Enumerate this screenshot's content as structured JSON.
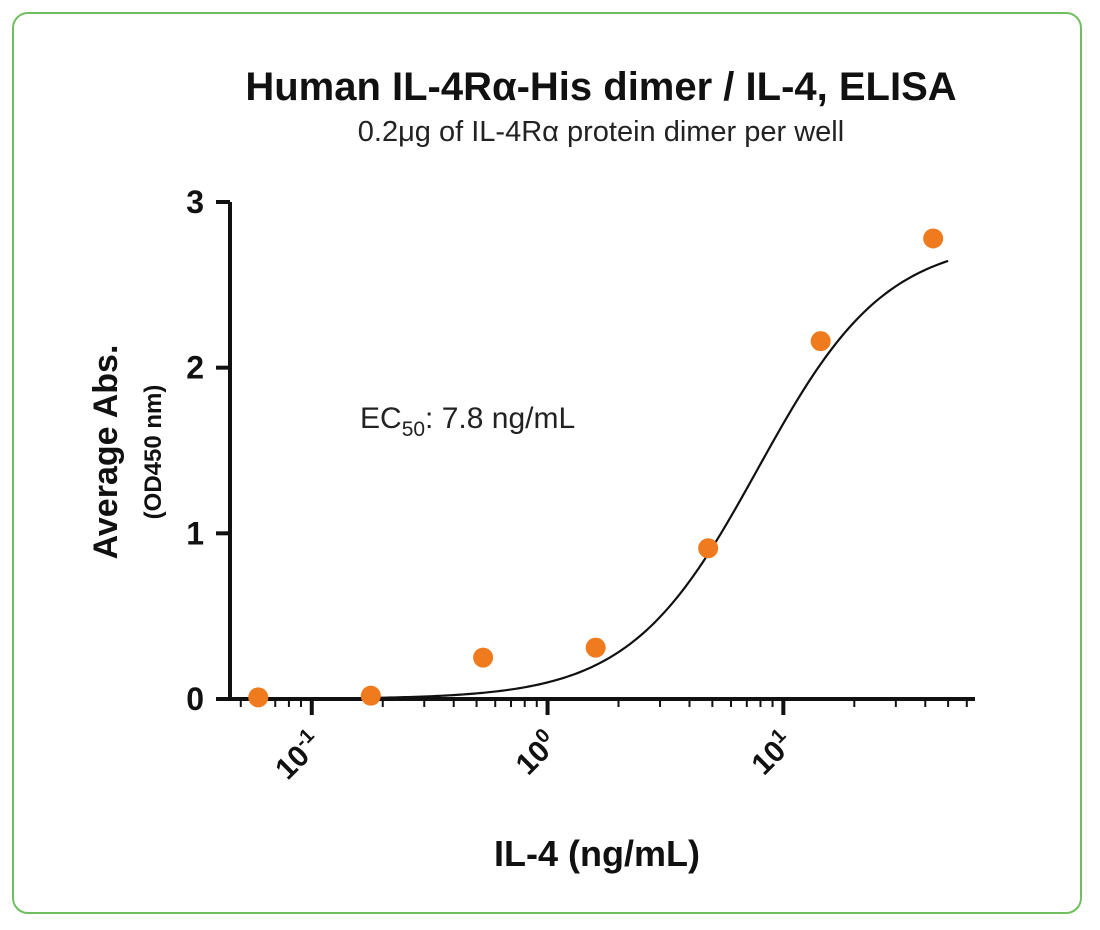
{
  "chart_data": {
    "type": "scatter",
    "title": "Human IL-4Rα-His dimer / IL-4, ELISA",
    "subtitle": "0.2μg of IL-4Rα protein dimer per well",
    "xlabel": "IL-4 (ng/mL)",
    "ylabel": "Average Abs.",
    "ylabel_sub": "(OD450 nm)",
    "x_scale": "log",
    "xlim": [
      0.045,
      65
    ],
    "ylim": [
      0,
      3
    ],
    "x_ticks": [
      {
        "value": 0.1,
        "base": "10",
        "exp": "-1"
      },
      {
        "value": 1,
        "base": "10",
        "exp": "0"
      },
      {
        "value": 10,
        "base": "10",
        "exp": "1"
      }
    ],
    "y_ticks": [
      0,
      1,
      2,
      3
    ],
    "annotation": {
      "prefix": "EC",
      "sub": "50",
      "suffix": ": 7.8 ng/mL"
    },
    "point_color": "#f07a1e",
    "curve_color": "#111111",
    "series": [
      {
        "x": [
          0.0593,
          0.178,
          0.533,
          1.6,
          4.8,
          14.4,
          43.2
        ],
        "y": [
          0.01,
          0.02,
          0.25,
          0.31,
          0.91,
          2.16,
          2.78
        ]
      }
    ],
    "fit": {
      "bottom": 0.0,
      "top": 2.78,
      "ec50": 7.8,
      "hill": 1.6
    }
  }
}
